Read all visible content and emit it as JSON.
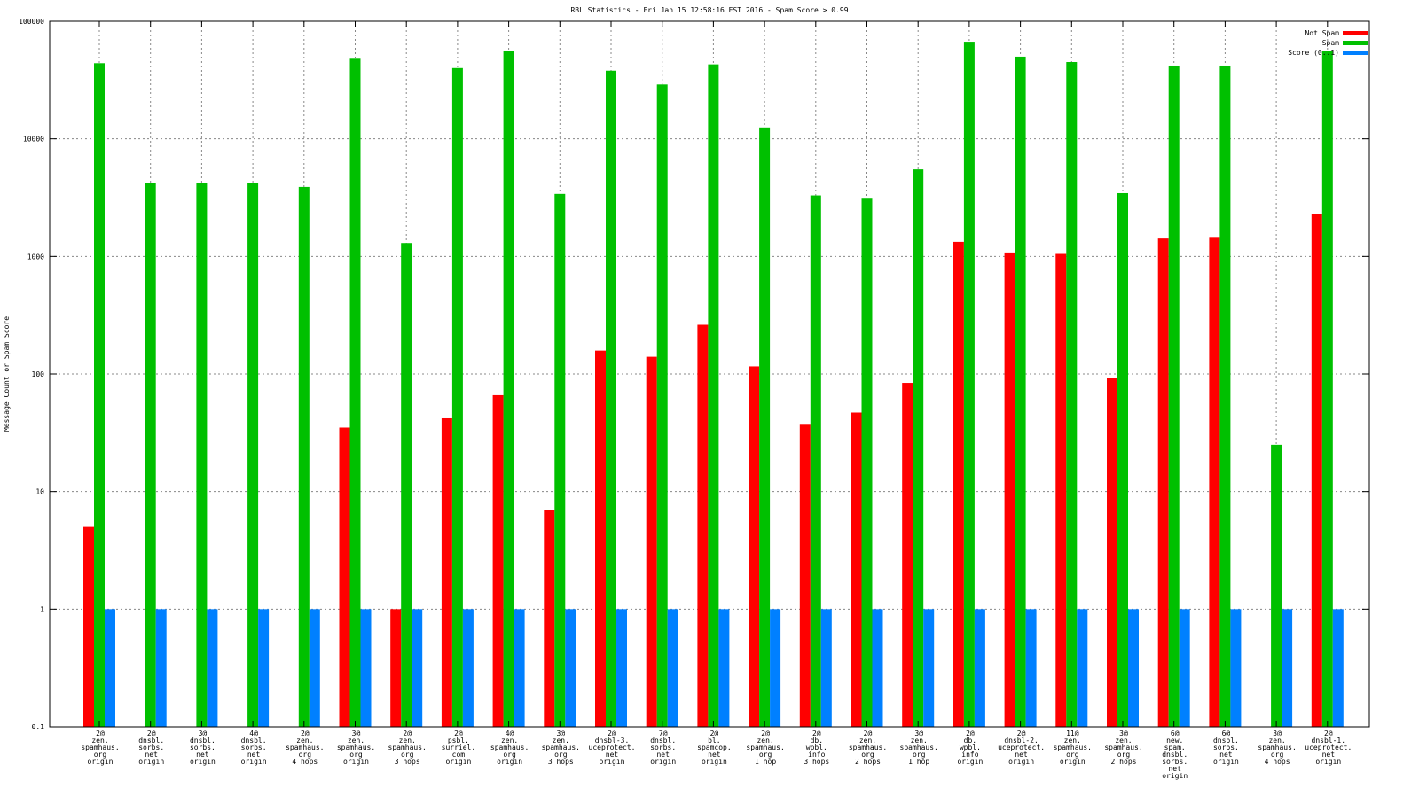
{
  "chart_data": {
    "type": "bar",
    "title": "RBL Statistics - Fri Jan 15 12:58:16 EST 2016 - Spam Score > 0.99",
    "xlabel": "",
    "ylabel": "Message Count or Spam Score",
    "yscale": "log",
    "ylim": [
      0.1,
      100000
    ],
    "yticks": [
      "0.1",
      "1",
      "10",
      "100",
      "1000",
      "10000",
      "100000"
    ],
    "grid": true,
    "legend_position": "top-right",
    "categories": [
      [
        "2@",
        "zen.",
        "spamhaus.",
        "org",
        "origin"
      ],
      [
        "2@",
        "dnsbl.",
        "sorbs.",
        "net",
        "origin"
      ],
      [
        "3@",
        "dnsbl.",
        "sorbs.",
        "net",
        "origin"
      ],
      [
        "4@",
        "dnsbl.",
        "sorbs.",
        "net",
        "origin"
      ],
      [
        "2@",
        "zen.",
        "spamhaus.",
        "org",
        "4 hops"
      ],
      [
        "3@",
        "zen.",
        "spamhaus.",
        "org",
        "origin"
      ],
      [
        "2@",
        "zen.",
        "spamhaus.",
        "org",
        "3 hops"
      ],
      [
        "2@",
        "psbl.",
        "surriel.",
        "com",
        "origin"
      ],
      [
        "4@",
        "zen.",
        "spamhaus.",
        "org",
        "origin"
      ],
      [
        "3@",
        "zen.",
        "spamhaus.",
        "org",
        "3 hops"
      ],
      [
        "2@",
        "dnsbl-3.",
        "uceprotect.",
        "net",
        "origin"
      ],
      [
        "7@",
        "dnsbl.",
        "sorbs.",
        "net",
        "origin"
      ],
      [
        "2@",
        "bl.",
        "spamcop.",
        "net",
        "origin"
      ],
      [
        "2@",
        "zen.",
        "spamhaus.",
        "org",
        "1 hop"
      ],
      [
        "2@",
        "db.",
        "wpbl.",
        "info",
        "3 hops"
      ],
      [
        "2@",
        "zen.",
        "spamhaus.",
        "org",
        "2 hops"
      ],
      [
        "3@",
        "zen.",
        "spamhaus.",
        "org",
        "1 hop"
      ],
      [
        "2@",
        "db.",
        "wpbl.",
        "info",
        "origin"
      ],
      [
        "2@",
        "dnsbl-2.",
        "uceprotect.",
        "net",
        "origin"
      ],
      [
        "11@",
        "zen.",
        "spamhaus.",
        "org",
        "origin"
      ],
      [
        "3@",
        "zen.",
        "spamhaus.",
        "org",
        "2 hops"
      ],
      [
        "6@",
        "new.",
        "spam.",
        "dnsbl.",
        "sorbs.",
        "net",
        "origin"
      ],
      [
        "6@",
        "dnsbl.",
        "sorbs.",
        "net",
        "origin"
      ],
      [
        "3@",
        "zen.",
        "spamhaus.",
        "org",
        "4 hops"
      ],
      [
        "2@",
        "dnsbl-1.",
        "uceprotect.",
        "net",
        "origin"
      ]
    ],
    "series": [
      {
        "name": "Not Spam",
        "color": "#ff0000",
        "values": [
          5,
          null,
          null,
          null,
          null,
          35,
          1,
          42,
          66,
          7,
          158,
          140,
          262,
          116,
          37,
          47,
          84,
          1330,
          1080,
          1050,
          93,
          1420,
          1440,
          null,
          2300
        ]
      },
      {
        "name": "Spam",
        "color": "#00c000",
        "values": [
          44000,
          4200,
          4200,
          4200,
          3900,
          48000,
          1300,
          40000,
          56000,
          3400,
          38000,
          29000,
          43000,
          12500,
          3300,
          3150,
          5500,
          67000,
          50000,
          45000,
          3450,
          42000,
          42000,
          25,
          56000
        ]
      },
      {
        "name": "Score (0..1)",
        "color": "#0080ff",
        "values": [
          1,
          1,
          1,
          1,
          1,
          1,
          1,
          1,
          1,
          1,
          1,
          1,
          1,
          1,
          1,
          1,
          1,
          1,
          1,
          1,
          1,
          1,
          1,
          1,
          1
        ]
      }
    ]
  }
}
